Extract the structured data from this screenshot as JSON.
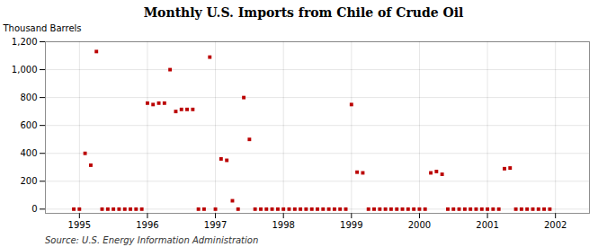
{
  "chart_data": {
    "type": "scatter",
    "title": "Monthly U.S. Imports from Chile of Crude Oil",
    "ylabel": "Thousand Barrels",
    "annotation": "Source: U.S. Energy Information Administration",
    "color": "#bb0000",
    "marker": "square",
    "grid": true,
    "xlim": [
      1994.5,
      2002.5
    ],
    "xticks": [
      1995,
      1996,
      1997,
      1998,
      1999,
      2000,
      2001,
      2002
    ],
    "ylim": [
      -30,
      1200
    ],
    "yticks": [
      0,
      200,
      400,
      600,
      800,
      {
        "value": 1000,
        "label": "1,000"
      },
      {
        "value": 1200,
        "label": "1,200"
      }
    ],
    "x": [
      1994.917,
      1995.0,
      1995.083,
      1995.167,
      1995.25,
      1995.333,
      1995.417,
      1995.5,
      1995.583,
      1995.667,
      1995.75,
      1995.833,
      1995.917,
      1996.0,
      1996.083,
      1996.167,
      1996.25,
      1996.333,
      1996.417,
      1996.5,
      1996.583,
      1996.667,
      1996.75,
      1996.833,
      1996.917,
      1997.0,
      1997.083,
      1997.167,
      1997.25,
      1997.333,
      1997.417,
      1997.5,
      1997.583,
      1997.667,
      1997.75,
      1997.833,
      1997.917,
      1998.0,
      1998.083,
      1998.167,
      1998.25,
      1998.333,
      1998.417,
      1998.5,
      1998.583,
      1998.667,
      1998.75,
      1998.833,
      1998.917,
      1999.0,
      1999.083,
      1999.167,
      1999.25,
      1999.333,
      1999.417,
      1999.5,
      1999.583,
      1999.667,
      1999.75,
      1999.833,
      1999.917,
      2000.0,
      2000.083,
      2000.167,
      2000.25,
      2000.333,
      2000.417,
      2000.5,
      2000.583,
      2000.667,
      2000.75,
      2000.833,
      2000.917,
      2001.0,
      2001.083,
      2001.167,
      2001.25,
      2001.333,
      2001.417,
      2001.5,
      2001.583,
      2001.667,
      2001.75,
      2001.833,
      2001.917
    ],
    "values": [
      0,
      0,
      400,
      315,
      1130,
      0,
      0,
      0,
      0,
      0,
      0,
      0,
      0,
      760,
      750,
      760,
      760,
      1000,
      700,
      715,
      715,
      715,
      0,
      0,
      1090,
      0,
      360,
      350,
      60,
      0,
      800,
      500,
      0,
      0,
      0,
      0,
      0,
      0,
      0,
      0,
      0,
      0,
      0,
      0,
      0,
      0,
      0,
      0,
      0,
      750,
      265,
      260,
      0,
      0,
      0,
      0,
      0,
      0,
      0,
      0,
      0,
      0,
      0,
      260,
      270,
      250,
      0,
      0,
      0,
      0,
      0,
      0,
      0,
      0,
      0,
      0,
      290,
      295,
      0,
      0,
      0,
      0,
      0,
      0,
      0
    ]
  }
}
